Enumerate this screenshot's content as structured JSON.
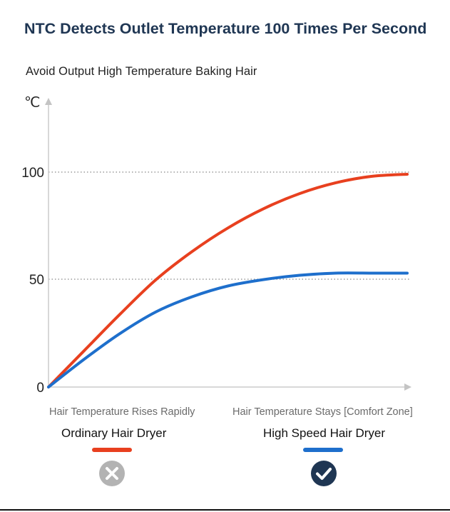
{
  "header": {
    "title": "NTC Detects Outlet Temperature 100 Times Per Second",
    "subtitle": "Avoid Output High Temperature Baking Hair"
  },
  "chart_data": {
    "type": "line",
    "y_unit": "℃",
    "ylim": [
      0,
      100
    ],
    "y_ticks": [
      "0",
      "50",
      "100"
    ],
    "grid": "dotted lines at 50 and 100",
    "x_captions": [
      "Hair Temperature Rises Rapidly",
      "Hair Temperature Stays [Comfort Zone]"
    ],
    "x": [
      0,
      1,
      2,
      3,
      4,
      5,
      6,
      7,
      8,
      9,
      10
    ],
    "series": [
      {
        "name": "Ordinary Hair Dryer",
        "color": "#e8401f",
        "status_icon": "cross-icon",
        "values": [
          0,
          17,
          34,
          50,
          63,
          74,
          83,
          90,
          95,
          98,
          99
        ]
      },
      {
        "name": "High Speed Hair Dryer",
        "color": "#1e6fcc",
        "status_icon": "check-icon",
        "values": [
          0,
          13,
          25,
          35,
          42,
          47,
          50,
          52,
          53,
          53,
          53
        ]
      }
    ]
  }
}
